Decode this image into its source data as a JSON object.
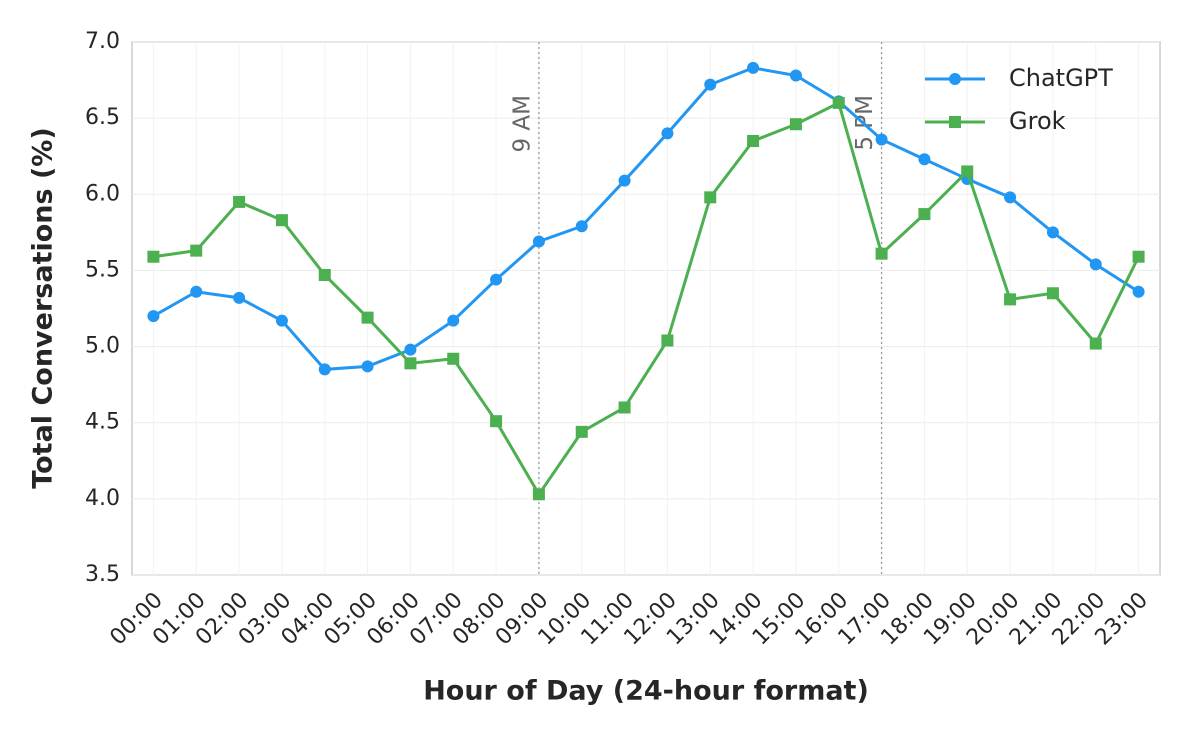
{
  "chart_data": {
    "type": "line",
    "x_label": "Hour of Day (24-hour format)",
    "y_label": "Total Conversations (%)",
    "categories": [
      "00:00",
      "01:00",
      "02:00",
      "03:00",
      "04:00",
      "05:00",
      "06:00",
      "07:00",
      "08:00",
      "09:00",
      "10:00",
      "11:00",
      "12:00",
      "13:00",
      "14:00",
      "15:00",
      "16:00",
      "17:00",
      "18:00",
      "19:00",
      "20:00",
      "21:00",
      "22:00",
      "23:00"
    ],
    "series": [
      {
        "name": "ChatGPT",
        "color": "#2196f3",
        "marker": "circle",
        "values": [
          5.2,
          5.36,
          5.32,
          5.17,
          4.85,
          4.87,
          4.98,
          5.17,
          5.44,
          5.69,
          5.79,
          6.09,
          6.4,
          6.72,
          6.83,
          6.78,
          6.61,
          6.36,
          6.23,
          6.1,
          5.98,
          5.75,
          5.54,
          5.36
        ]
      },
      {
        "name": "Grok",
        "color": "#4caf50",
        "marker": "square",
        "values": [
          5.59,
          5.63,
          5.95,
          5.83,
          5.47,
          5.19,
          4.89,
          4.92,
          4.51,
          4.03,
          4.44,
          4.6,
          5.04,
          5.98,
          6.35,
          6.46,
          6.6,
          5.61,
          5.87,
          6.15,
          5.31,
          5.35,
          5.02,
          5.59
        ]
      }
    ],
    "annotations": [
      {
        "x": "09:00",
        "label": "9 AM"
      },
      {
        "x": "17:00",
        "label": "5 PM"
      }
    ],
    "ylim": [
      3.5,
      7.0
    ],
    "yticks": [
      {
        "value": 3.5,
        "label": "3.5"
      },
      {
        "value": 4,
        "label": "4.0"
      },
      {
        "value": 4.5,
        "label": "4.5"
      },
      {
        "value": 5,
        "label": "5.0"
      },
      {
        "value": 5.5,
        "label": "5.5"
      },
      {
        "value": 6,
        "label": "6.0"
      },
      {
        "value": 6.5,
        "label": "6.5"
      },
      {
        "value": 7,
        "label": "7.0"
      }
    ],
    "grid": true,
    "legend": "upper right"
  }
}
